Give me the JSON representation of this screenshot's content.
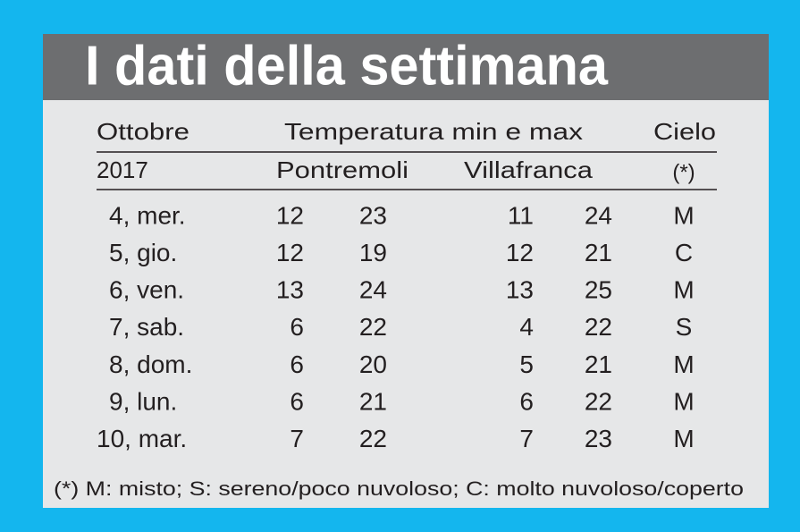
{
  "header": {
    "title": "I dati della settimana"
  },
  "table": {
    "head1": [
      "Ottobre",
      "Temperatura min e max",
      "Cielo"
    ],
    "head2": [
      "2017",
      "Pontremoli",
      "Villafranca",
      "(*)"
    ],
    "rows": [
      [
        "4, mer.",
        "12",
        "23",
        "11",
        "24",
        "M"
      ],
      [
        "5, gio.",
        "12",
        "19",
        "12",
        "21",
        "C"
      ],
      [
        "6, ven.",
        "13",
        "24",
        "13",
        "25",
        "M"
      ],
      [
        "7, sab.",
        "6",
        "22",
        "4",
        "22",
        "S"
      ],
      [
        "8, dom.",
        "6",
        "20",
        "5",
        "21",
        "M"
      ],
      [
        "9, lun.",
        "6",
        "21",
        "6",
        "22",
        "M"
      ],
      [
        "10, mar.",
        "7",
        "22",
        "7",
        "23",
        "M"
      ]
    ]
  },
  "footnote": "(*) M: misto; S: sereno/poco nuvoloso; C: molto nuvoloso/coperto"
}
